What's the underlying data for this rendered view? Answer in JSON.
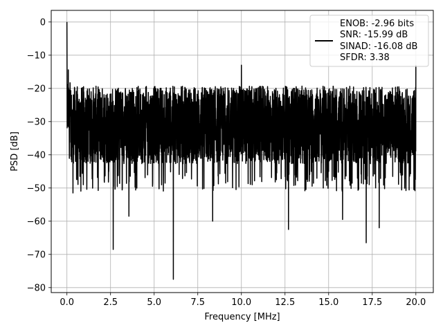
{
  "chart_data": {
    "type": "line",
    "title": "",
    "xlabel": "Frequency [MHz]",
    "ylabel": "PSD [dB]",
    "xlim": [
      -0.9,
      21.0
    ],
    "ylim": [
      -81.5,
      3.5
    ],
    "xticks": [
      0.0,
      2.5,
      5.0,
      7.5,
      10.0,
      12.5,
      15.0,
      17.5,
      20.0
    ],
    "xtick_labels": [
      "0.0",
      "2.5",
      "5.0",
      "7.5",
      "10.0",
      "12.5",
      "15.0",
      "17.5",
      "20.0"
    ],
    "yticks": [
      0,
      -10,
      -20,
      -30,
      -40,
      -50,
      -60,
      -70,
      -80
    ],
    "ytick_labels": [
      "0",
      "−10",
      "−20",
      "−30",
      "−40",
      "−50",
      "−60",
      "−70",
      "−80"
    ],
    "grid": true,
    "legend_position": "top-right",
    "legend_lines": [
      "ENOB: -2.96 bits",
      "SNR: -15.99 dB",
      "SINAD: -16.08 dB",
      "SFDR: 3.38"
    ],
    "series": [
      {
        "color": "#000000",
        "x_range": [
          0.0,
          20.0
        ],
        "baseline_db": -31,
        "noise_band_db": [
          -45,
          -19
        ],
        "peaks": [
          {
            "x": 0.0,
            "y": 0
          },
          {
            "x": 10.0,
            "y": -13
          },
          {
            "x": 20.0,
            "y": -13
          }
        ],
        "dips": [
          {
            "x": 2.65,
            "y": -68.5
          },
          {
            "x": 6.1,
            "y": -77.5
          },
          {
            "x": 3.55,
            "y": -58.5
          },
          {
            "x": 8.35,
            "y": -60.0
          },
          {
            "x": 12.7,
            "y": -62.5
          },
          {
            "x": 17.15,
            "y": -66.5
          },
          {
            "x": 17.9,
            "y": -62.0
          },
          {
            "x": 15.8,
            "y": -59.5
          },
          {
            "x": 0.35,
            "y": -51.5
          }
        ]
      }
    ]
  }
}
